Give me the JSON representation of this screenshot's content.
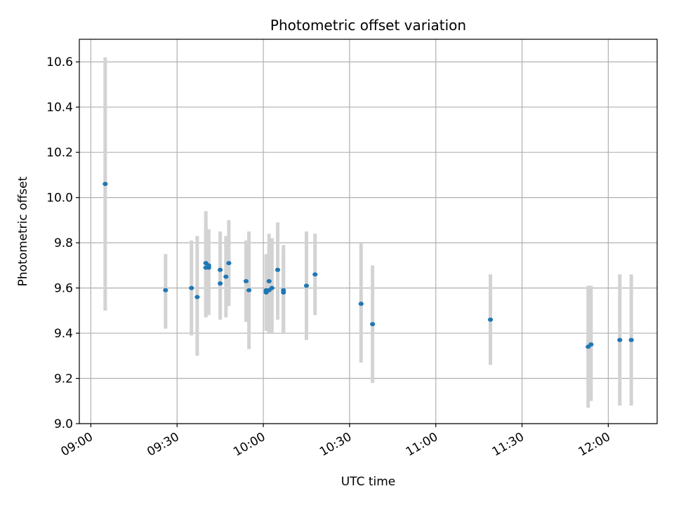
{
  "chart_data": {
    "type": "scatter",
    "title": "Photometric offset variation",
    "xlabel": "UTC time",
    "ylabel": "Photometric offset",
    "xlim": [
      "08:56",
      "12:17"
    ],
    "ylim": [
      9.0,
      10.7
    ],
    "grid": true,
    "x_ticks": [
      "09:00",
      "09:30",
      "10:00",
      "10:30",
      "11:00",
      "11:30",
      "12:00"
    ],
    "y_ticks": [
      "9.0",
      "9.2",
      "9.4",
      "9.6",
      "9.8",
      "10.0",
      "10.2",
      "10.4",
      "10.6"
    ],
    "marker_color": "#1f77b4",
    "errorbar_color": "#d3d3d3",
    "points": [
      {
        "x": "09:05",
        "y": 10.06,
        "ylo": 9.5,
        "yhi": 10.62
      },
      {
        "x": "09:26",
        "y": 9.59,
        "ylo": 9.42,
        "yhi": 9.75
      },
      {
        "x": "09:35",
        "y": 9.6,
        "ylo": 9.39,
        "yhi": 9.81
      },
      {
        "x": "09:37",
        "y": 9.56,
        "ylo": 9.3,
        "yhi": 9.83
      },
      {
        "x": "09:40",
        "y": 9.71,
        "ylo": 9.48,
        "yhi": 9.94
      },
      {
        "x": "09:40",
        "y": 9.69,
        "ylo": 9.47,
        "yhi": 9.9
      },
      {
        "x": "09:41",
        "y": 9.69,
        "ylo": 9.55,
        "yhi": 9.83
      },
      {
        "x": "09:41",
        "y": 9.7,
        "ylo": 9.48,
        "yhi": 9.86
      },
      {
        "x": "09:45",
        "y": 9.62,
        "ylo": 9.46,
        "yhi": 9.78
      },
      {
        "x": "09:45",
        "y": 9.68,
        "ylo": 9.5,
        "yhi": 9.85
      },
      {
        "x": "09:47",
        "y": 9.65,
        "ylo": 9.47,
        "yhi": 9.83
      },
      {
        "x": "09:48",
        "y": 9.71,
        "ylo": 9.52,
        "yhi": 9.9
      },
      {
        "x": "09:54",
        "y": 9.63,
        "ylo": 9.45,
        "yhi": 9.81
      },
      {
        "x": "09:55",
        "y": 9.59,
        "ylo": 9.33,
        "yhi": 9.85
      },
      {
        "x": "10:01",
        "y": 9.58,
        "ylo": 9.41,
        "yhi": 9.75
      },
      {
        "x": "10:01",
        "y": 9.59,
        "ylo": 9.44,
        "yhi": 9.74
      },
      {
        "x": "10:02",
        "y": 9.63,
        "ylo": 9.43,
        "yhi": 9.84
      },
      {
        "x": "10:02",
        "y": 9.59,
        "ylo": 9.4,
        "yhi": 9.78
      },
      {
        "x": "10:03",
        "y": 9.6,
        "ylo": 9.4,
        "yhi": 9.82
      },
      {
        "x": "10:05",
        "y": 9.68,
        "ylo": 9.46,
        "yhi": 9.89
      },
      {
        "x": "10:07",
        "y": 9.59,
        "ylo": 9.4,
        "yhi": 9.79
      },
      {
        "x": "10:07",
        "y": 9.58,
        "ylo": 9.4,
        "yhi": 9.77
      },
      {
        "x": "10:15",
        "y": 9.61,
        "ylo": 9.37,
        "yhi": 9.85
      },
      {
        "x": "10:18",
        "y": 9.66,
        "ylo": 9.48,
        "yhi": 9.84
      },
      {
        "x": "10:34",
        "y": 9.53,
        "ylo": 9.27,
        "yhi": 9.8
      },
      {
        "x": "10:38",
        "y": 9.44,
        "ylo": 9.18,
        "yhi": 9.7
      },
      {
        "x": "11:19",
        "y": 9.46,
        "ylo": 9.26,
        "yhi": 9.66
      },
      {
        "x": "11:53",
        "y": 9.34,
        "ylo": 9.07,
        "yhi": 9.61
      },
      {
        "x": "11:54",
        "y": 9.35,
        "ylo": 9.1,
        "yhi": 9.61
      },
      {
        "x": "12:04",
        "y": 9.37,
        "ylo": 9.08,
        "yhi": 9.66
      },
      {
        "x": "12:08",
        "y": 9.37,
        "ylo": 9.08,
        "yhi": 9.66
      }
    ]
  }
}
